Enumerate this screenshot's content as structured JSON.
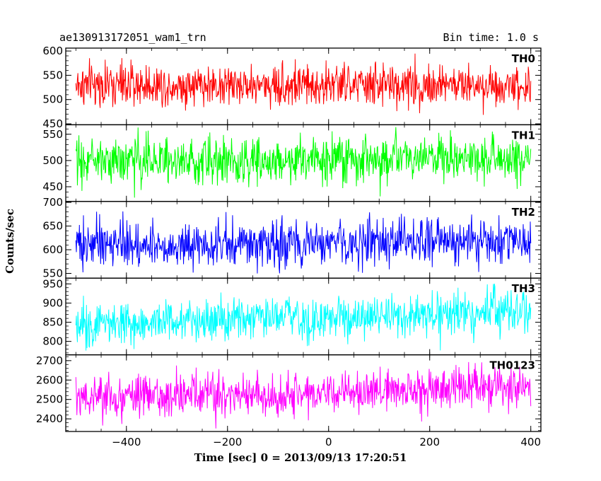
{
  "header": {
    "title_left": "ae130913172051_wam1_trn",
    "title_right": "Bin time: 1.0 s"
  },
  "axes": {
    "ylabel": "Counts/sec",
    "xlabel": "Time [sec] 0 = 2013/09/13 17:20:51"
  },
  "chart_data": [
    {
      "type": "line",
      "name": "TH0",
      "color": "#ff0000",
      "x_range": [
        -500,
        400
      ],
      "xlim": [
        -520,
        420
      ],
      "ylim": [
        448,
        606
      ],
      "yticks": [
        450,
        500,
        550,
        600
      ],
      "ytick_labels": [
        "450",
        "500",
        "550",
        "600"
      ],
      "mean": 530,
      "spread": 22,
      "trend": [
        0,
        0
      ],
      "clip": false
    },
    {
      "type": "line",
      "name": "TH1",
      "color": "#00ff00",
      "x_range": [
        -500,
        400
      ],
      "xlim": [
        -520,
        420
      ],
      "ylim": [
        422,
        568
      ],
      "yticks": [
        450,
        500,
        550
      ],
      "ytick_labels": [
        "450",
        "500",
        "550"
      ],
      "mean": 500,
      "spread": 22,
      "trend": [
        0,
        4
      ],
      "clip": false
    },
    {
      "type": "line",
      "name": "TH2",
      "color": "#0000ff",
      "x_range": [
        -500,
        400
      ],
      "xlim": [
        -520,
        420
      ],
      "ylim": [
        540,
        702
      ],
      "yticks": [
        550,
        600,
        650,
        700
      ],
      "ytick_labels": [
        "550",
        "600",
        "650",
        "700"
      ],
      "mean": 612,
      "spread": 24,
      "trend": [
        0,
        5
      ],
      "clip": false
    },
    {
      "type": "line",
      "name": "TH3",
      "color": "#00ffff",
      "x_range": [
        -500,
        400
      ],
      "xlim": [
        -520,
        420
      ],
      "ylim": [
        765,
        965
      ],
      "yticks": [
        800,
        850,
        900,
        950
      ],
      "ytick_labels": [
        "800",
        "850",
        "900",
        "950"
      ],
      "mean": 850,
      "spread": 28,
      "trend": [
        0,
        30
      ],
      "clip": true
    },
    {
      "type": "line",
      "name": "TH0123",
      "color": "#ff00ff",
      "x_range": [
        -500,
        400
      ],
      "xlim": [
        -520,
        420
      ],
      "ylim": [
        2335,
        2730
      ],
      "yticks": [
        2400,
        2500,
        2600,
        2700
      ],
      "ytick_labels": [
        "2400",
        "2500",
        "2600",
        "2700"
      ],
      "mean": 2510,
      "spread": 55,
      "trend": [
        0,
        70
      ],
      "clip": true
    }
  ],
  "xaxis": {
    "ticks": [
      -400,
      -200,
      0,
      200,
      400
    ],
    "tick_labels": [
      "−400",
      "−200",
      "0",
      "200",
      "400"
    ],
    "minor_step": 50
  }
}
